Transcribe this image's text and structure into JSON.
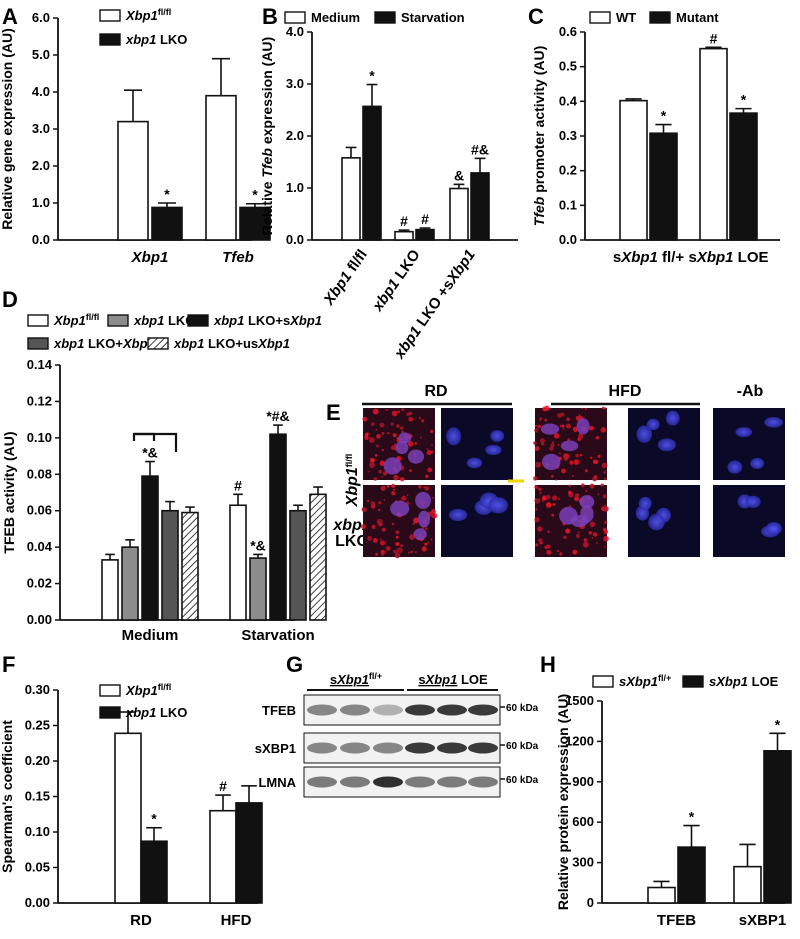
{
  "panel_letters": [
    "A",
    "B",
    "C",
    "D",
    "E",
    "F",
    "G",
    "H"
  ],
  "colors": {
    "open": "#ffffff",
    "filled": "#111111",
    "gray": "#8c8c8c",
    "darkgray": "#555555",
    "stroke": "#111111"
  },
  "chart_data": [
    {
      "id": "A",
      "type": "bar",
      "ylabel": "Relative gene expression (AU)",
      "ylim": [
        0,
        6
      ],
      "yticks": [
        "0.0",
        "1.0",
        "2.0",
        "3.0",
        "4.0",
        "5.0",
        "6.0"
      ],
      "categories": [
        "Xbp1",
        "Tfeb"
      ],
      "legend": [
        {
          "text": "Xbp1",
          "sup": "fl/fl"
        },
        {
          "text": "xbp1",
          "after": " LKO"
        }
      ],
      "series": [
        {
          "name": "Xbp1 fl/fl",
          "fill": "open",
          "values": [
            3.2,
            3.9
          ],
          "errors": [
            0.85,
            1.0
          ],
          "marks": [
            "",
            ""
          ]
        },
        {
          "name": "xbp1 LKO",
          "fill": "filled",
          "values": [
            0.88,
            0.88
          ],
          "errors": [
            0.12,
            0.1
          ],
          "marks": [
            "*",
            "*"
          ]
        }
      ]
    },
    {
      "id": "B",
      "type": "bar",
      "ylabel": "Relative Tfeb expression (AU)",
      "ylim": [
        0,
        4
      ],
      "yticks": [
        "0.0",
        "1.0",
        "2.0",
        "3.0",
        "4.0"
      ],
      "categories": [
        "Xbp1 fl/fl",
        "xbp1 LKO",
        "xbp1 LKO +sXbp1"
      ],
      "legend": [
        {
          "text": "Medium"
        },
        {
          "text": "Starvation"
        }
      ],
      "series": [
        {
          "name": "Medium",
          "fill": "open",
          "values": [
            1.58,
            0.16,
            0.99
          ],
          "errors": [
            0.2,
            0.03,
            0.08
          ],
          "marks": [
            "",
            "#",
            "&"
          ]
        },
        {
          "name": "Starvation",
          "fill": "filled",
          "values": [
            2.57,
            0.2,
            1.29
          ],
          "errors": [
            0.42,
            0.03,
            0.28
          ],
          "marks": [
            "*",
            "#",
            "#&"
          ]
        }
      ]
    },
    {
      "id": "C",
      "type": "bar",
      "ylabel": "Tfeb promoter activity (AU)",
      "ylim": [
        0,
        0.6
      ],
      "yticks": [
        "0.0",
        "0.1",
        "0.2",
        "0.3",
        "0.4",
        "0.5",
        "0.6"
      ],
      "categories": [
        "sXbp1 fl/+",
        "sXbp1 LOE"
      ],
      "legend": [
        {
          "text": "WT"
        },
        {
          "text": "Mutant"
        }
      ],
      "series": [
        {
          "name": "WT",
          "fill": "open",
          "values": [
            0.402,
            0.552
          ],
          "errors": [
            0.005,
            0.004
          ],
          "marks": [
            "",
            "#"
          ]
        },
        {
          "name": "Mutant",
          "fill": "filled",
          "values": [
            0.308,
            0.366
          ],
          "errors": [
            0.025,
            0.013
          ],
          "marks": [
            "*",
            "*"
          ]
        }
      ]
    },
    {
      "id": "D",
      "type": "bar",
      "ylabel": "TFEB activity (AU)",
      "ylim": [
        0,
        0.14
      ],
      "yticks": [
        "0.00",
        "0.02",
        "0.04",
        "0.06",
        "0.08",
        "0.10",
        "0.12",
        "0.14"
      ],
      "categories": [
        "Medium",
        "Starvation"
      ],
      "legend": [
        {
          "text": "Xbp1",
          "sup": "fl/fl"
        },
        {
          "text": "xbp1",
          "after": " LKO"
        },
        {
          "text": "xbp1",
          "after": " LKO+s",
          "tail": "Xbp1"
        },
        {
          "text": "xbp1",
          "after": " LKO+",
          "tail": "Xbp1"
        },
        {
          "text": "xbp1",
          "after": " LKO+us",
          "tail": "Xbp1"
        }
      ],
      "series": [
        {
          "name": "Xbp1 fl/fl",
          "fill": "open",
          "values": [
            0.033,
            0.063
          ],
          "errors": [
            0.003,
            0.006
          ],
          "marks": [
            "",
            "#"
          ]
        },
        {
          "name": "xbp1 LKO",
          "fill": "gray",
          "values": [
            0.04,
            0.034
          ],
          "errors": [
            0.004,
            0.002
          ],
          "marks": [
            "",
            "*&"
          ]
        },
        {
          "name": "xbp1 LKO+sXbp1",
          "fill": "filled",
          "values": [
            0.079,
            0.102
          ],
          "errors": [
            0.008,
            0.005
          ],
          "marks": [
            "*&",
            "*#&"
          ]
        },
        {
          "name": "xbp1 LKO+Xbp1",
          "fill": "darkgray",
          "values": [
            0.06,
            0.06
          ],
          "errors": [
            0.005,
            0.003
          ],
          "marks": [
            "",
            ""
          ]
        },
        {
          "name": "xbp1 LKO+usXbp1",
          "fill": "hatch",
          "values": [
            0.059,
            0.069
          ],
          "errors": [
            0.003,
            0.004
          ],
          "marks": [
            "",
            ""
          ]
        }
      ]
    },
    {
      "id": "F",
      "type": "bar",
      "ylabel": "Spearman's coefficient",
      "ylim": [
        0,
        0.3
      ],
      "yticks": [
        "0.00",
        "0.05",
        "0.10",
        "0.15",
        "0.20",
        "0.25",
        "0.30"
      ],
      "categories": [
        "RD",
        "HFD"
      ],
      "legend": [
        {
          "text": "Xbp1",
          "sup": "fl/fl"
        },
        {
          "text": "xbp1",
          "after": " LKO"
        }
      ],
      "series": [
        {
          "name": "Xbp1 fl/fl",
          "fill": "open",
          "values": [
            0.239,
            0.13
          ],
          "errors": [
            0.03,
            0.022
          ],
          "marks": [
            "",
            "#"
          ]
        },
        {
          "name": "xbp1 LKO",
          "fill": "filled",
          "values": [
            0.087,
            0.141
          ],
          "errors": [
            0.019,
            0.024
          ],
          "marks": [
            "*",
            ""
          ]
        }
      ]
    },
    {
      "id": "H",
      "type": "bar",
      "ylabel": "Relative protein expression (AU)",
      "ylim": [
        0,
        1500
      ],
      "yticks": [
        "0",
        "300",
        "600",
        "900",
        "1200",
        "1500"
      ],
      "categories": [
        "TFEB",
        "sXBP1"
      ],
      "legend": [
        {
          "text": "sXbp1",
          "sup": "fl/+"
        },
        {
          "text": "sXbp1",
          "after": " LOE"
        }
      ],
      "series": [
        {
          "name": "sXbp1 fl/+",
          "fill": "open",
          "values": [
            115,
            270
          ],
          "errors": [
            45,
            165
          ],
          "marks": [
            "",
            ""
          ]
        },
        {
          "name": "sXbp1 LOE",
          "fill": "filled",
          "values": [
            415,
            1130
          ],
          "errors": [
            160,
            130
          ],
          "marks": [
            "*",
            "*"
          ]
        }
      ]
    }
  ],
  "panel_E": {
    "columns": [
      "RD",
      "HFD",
      "-Ab"
    ],
    "rows": [
      "Xbp1 fl/fl",
      "xbp1 LKO"
    ]
  },
  "panel_G": {
    "groups": [
      "sXbp1 fl/+",
      "sXbp1 LOE"
    ],
    "bands": [
      "TFEB",
      "sXBP1",
      "LMNA"
    ],
    "size_marker": "60 kDa"
  }
}
